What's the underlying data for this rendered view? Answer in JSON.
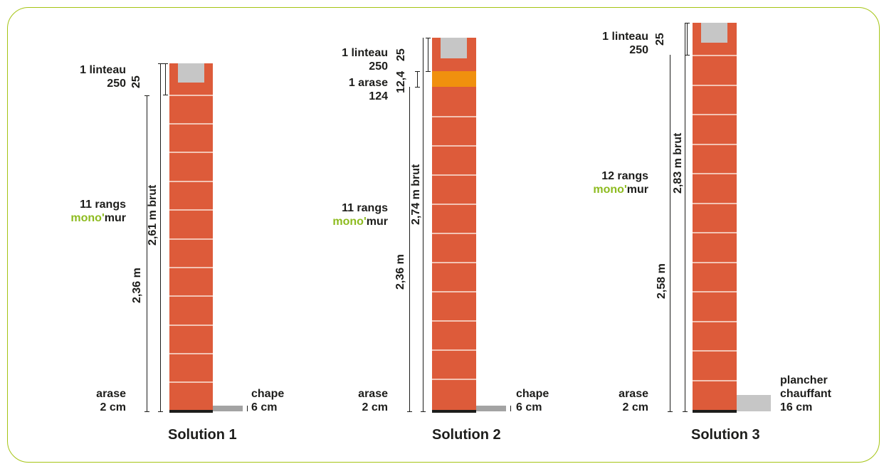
{
  "solutions": [
    {
      "title": "Solution 1",
      "linteau_label": "1 linteau",
      "linteau_size": "250",
      "linteau_dim": "25",
      "rangs_label": "11 rangs",
      "brand_prefix": "mono'",
      "brand_suffix": "mur",
      "total_dim": "2,61 m brut",
      "wall_dim": "2,36 m",
      "arase_label": "arase",
      "arase_size": "2 cm",
      "floor_label": "chape",
      "floor_size": "6 cm"
    },
    {
      "title": "Solution 2",
      "linteau_label": "1 linteau",
      "linteau_size": "250",
      "linteau_dim": "25",
      "arase_top_label": "1 arase",
      "arase_top_size": "124",
      "arase_top_dim": "12,4",
      "rangs_label": "11 rangs",
      "brand_prefix": "mono'",
      "brand_suffix": "mur",
      "total_dim": "2,74 m brut",
      "wall_dim": "2,36 m",
      "arase_label": "arase",
      "arase_size": "2 cm",
      "floor_label": "chape",
      "floor_size": "6 cm"
    },
    {
      "title": "Solution 3",
      "linteau_label": "1 linteau",
      "linteau_size": "250",
      "linteau_dim": "25",
      "rangs_label": "12 rangs",
      "brand_prefix": "mono'",
      "brand_suffix": "mur",
      "total_dim": "2,83 m brut",
      "wall_dim": "2,58 m",
      "arase_label": "arase",
      "arase_size": "2 cm",
      "floor_label": "plancher",
      "floor_label_2": "chauffant",
      "floor_size": "16 cm"
    }
  ],
  "colors": {
    "brick": "#dd5b3a",
    "joint": "#f3c3b3",
    "linteau": "#c6c6c6",
    "arase_block": "#f0900e",
    "chape": "#a3a3a3",
    "frame": "#a5c414",
    "brand": "#8dbb1f"
  }
}
